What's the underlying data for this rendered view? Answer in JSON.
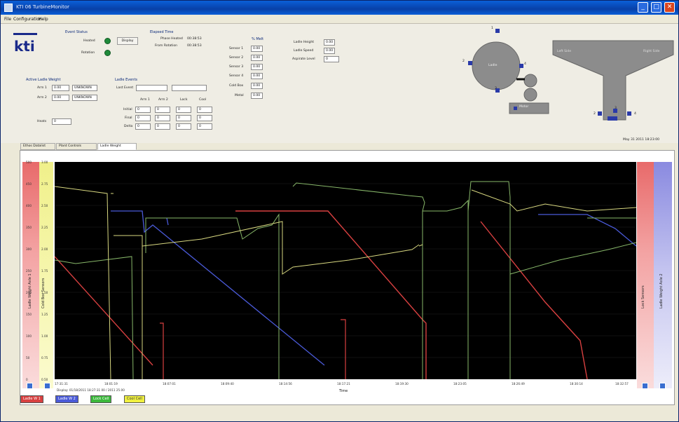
{
  "window": {
    "title": "KTI 06 TurbineMonitor"
  },
  "menu": [
    {
      "label": "File"
    },
    {
      "label": "Configuration"
    },
    {
      "label": "Help"
    }
  ],
  "status": {
    "header": "Event Status",
    "heated_label": "Heated",
    "rotation_label": "Rotation",
    "display_btn": "Display"
  },
  "elapsed": {
    "header": "Elapsed Time",
    "heat_label": "Phase Heated",
    "heat_value": "00:38:53",
    "rot_label": "From Rotation",
    "rot_value": "00:38:53"
  },
  "sensors": {
    "header": "% Melt",
    "rows": [
      {
        "label": "Sensor 1",
        "value": "0.00"
      },
      {
        "label": "Sensor 2",
        "value": "0.00"
      },
      {
        "label": "Sensor 3",
        "value": "0.00"
      },
      {
        "label": "Sensor 4",
        "value": "0.00"
      },
      {
        "label": "Cold Box",
        "value": "0.00"
      },
      {
        "label": "Metal",
        "value": "0.00"
      }
    ]
  },
  "ladle_info": {
    "rows": [
      {
        "label": "Ladle Height",
        "value": "0.00"
      },
      {
        "label": "Ladle Speed",
        "value": "0.00"
      },
      {
        "label": "Aspirate Level",
        "value": "0"
      }
    ]
  },
  "weight": {
    "header": "Active Ladle Weight",
    "rows": [
      {
        "label": "Arm 1",
        "value": "0.00",
        "status": "UNKNOWN"
      },
      {
        "label": "Arm 2",
        "value": "0.00",
        "status": "UNKNOWN"
      }
    ],
    "heats_label": "Heats",
    "heats_value": "0"
  },
  "events": {
    "header": "Ladle Events",
    "last_label": "Last Event",
    "cols": [
      "Arm 1",
      "Arm 2",
      "Lock",
      "Cool"
    ],
    "rows": [
      {
        "label": "Initial",
        "values": [
          "0",
          "0",
          "0",
          "0"
        ]
      },
      {
        "label": "Final",
        "values": [
          "0",
          "0",
          "0",
          "0"
        ]
      },
      {
        "label": "Delta",
        "values": [
          "0",
          "0",
          "0",
          "0"
        ]
      }
    ]
  },
  "diagram": {
    "ladle_label": "Ladle",
    "motor_label": "Motor",
    "n1": "1",
    "n2": "2",
    "n3": "3",
    "n4": "4",
    "y_left": "Left Side",
    "y_right": "Right Side",
    "y_2": "2",
    "y_3": "3",
    "y_4": "4"
  },
  "timestamp": "May 31 2011  18:23:00",
  "tabs": [
    {
      "label": "Ethos Datalist"
    },
    {
      "label": "Plant Controls"
    },
    {
      "label": "Ladle Weight"
    }
  ],
  "chart_data": {
    "type": "line",
    "xlabel": "Time",
    "left_axis_label": "Ladle Weight Axle 1",
    "left_axis2_label": "Cold Box Sensors",
    "right_axis_label": "Ladle Weight Axle 2",
    "right_axis2_label": "Lock Sensors",
    "left_ticks": [
      "500",
      "450",
      "400",
      "350",
      "300",
      "250",
      "200",
      "150",
      "100",
      "50",
      "0"
    ],
    "left2_ticks": [
      "3.00",
      "2.75",
      "2.50",
      "2.25",
      "2.00",
      "1.75",
      "1.50",
      "1.25",
      "1.00",
      "0.75",
      "0.50"
    ],
    "x_ticks": [
      "17:31:31",
      "18:01:19",
      "18:07:01",
      "18:09:40",
      "18:14:56",
      "18:17:21",
      "18:19:30",
      "18:23:05",
      "18:26:49",
      "18:30:14",
      "18:32:57"
    ],
    "status_text": "Display: 01/18/2011 18:27:31  00 / 2011 25.00",
    "colors": {
      "arm1": "#d84040",
      "arm2": "#4a5ad8",
      "lock": "#88b86a",
      "cool": "#d8d880"
    },
    "series": [
      {
        "name": "Ladle W 1",
        "color": "#d84040"
      },
      {
        "name": "Ladle W 2",
        "color": "#4a5ad8"
      },
      {
        "name": "Lock Cell",
        "color": "#3cb83c"
      },
      {
        "name": "Cool Cell",
        "color": "#e0e040"
      }
    ]
  }
}
